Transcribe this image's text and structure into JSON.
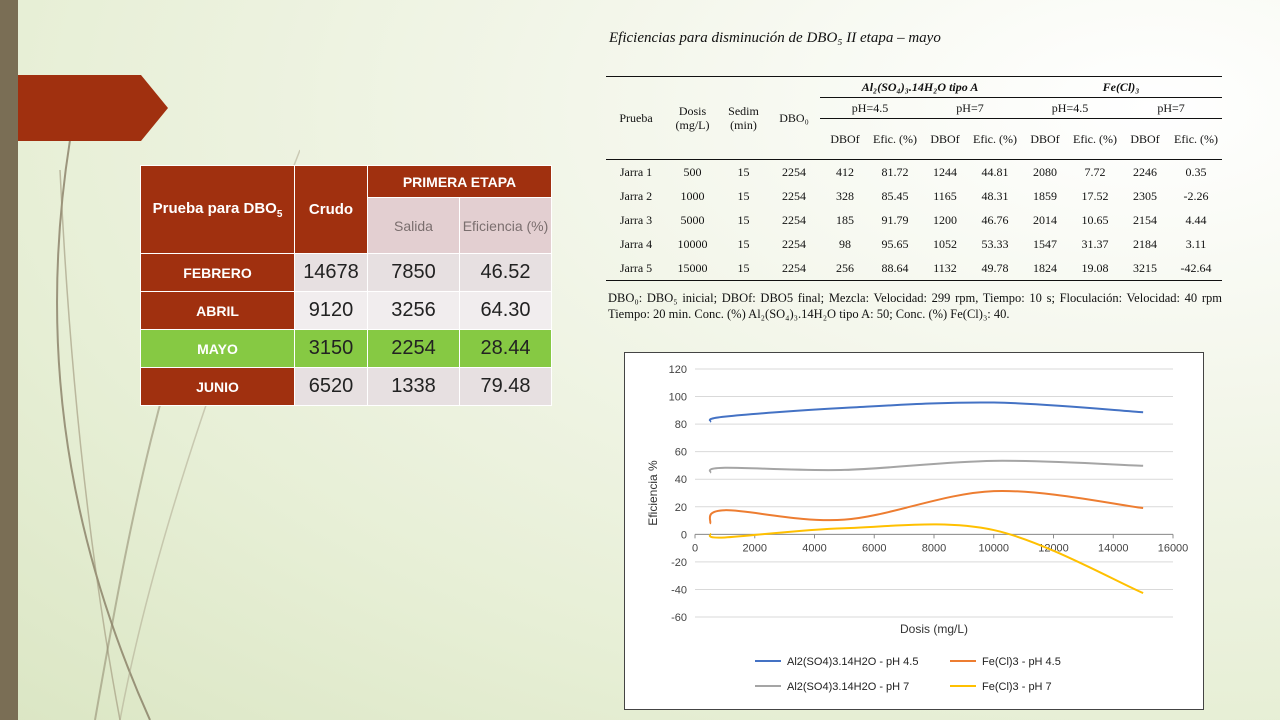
{
  "left_table": {
    "header_test": "Prueba para DBO",
    "header_test_sub": "5",
    "header_crudo": "Crudo",
    "header_stage": "PRIMERA ETAPA",
    "header_salida": "Salida",
    "header_eficiencia": "Eficiencia (%)",
    "rows": [
      {
        "month": "FEBRERO",
        "crudo": "14678",
        "salida": "7850",
        "eficiencia": "46.52"
      },
      {
        "month": "ABRIL",
        "crudo": "9120",
        "salida": "3256",
        "eficiencia": "64.30"
      },
      {
        "month": "MAYO",
        "crudo": "3150",
        "salida": "2254",
        "eficiencia": "28.44"
      },
      {
        "month": "JUNIO",
        "crudo": "6520",
        "salida": "1338",
        "eficiencia": "79.48"
      }
    ]
  },
  "right_table": {
    "title": "Eficiencias para disminución de DBO₅ II etapa – mayo",
    "col_prueba": "Prueba",
    "col_dosis": "Dosis (mg/L)",
    "col_sedim": "Sedim (min)",
    "col_dbo0": "DBO₀",
    "group_al": "Al₂(SO₄)₃.14H₂O tipo A",
    "group_fe": "Fe(Cl)₃",
    "ph_labels": [
      "pH=4.5",
      "pH=7",
      "pH=4.5",
      "pH=7"
    ],
    "sub_dbof": "DBOf",
    "sub_efic": "Efic. (%)",
    "rows": [
      [
        "Jarra 1",
        "500",
        "15",
        "2254",
        "412",
        "81.72",
        "1244",
        "44.81",
        "2080",
        "7.72",
        "2246",
        "0.35"
      ],
      [
        "Jarra 2",
        "1000",
        "15",
        "2254",
        "328",
        "85.45",
        "1165",
        "48.31",
        "1859",
        "17.52",
        "2305",
        "-2.26"
      ],
      [
        "Jarra 3",
        "5000",
        "15",
        "2254",
        "185",
        "91.79",
        "1200",
        "46.76",
        "2014",
        "10.65",
        "2154",
        "4.44"
      ],
      [
        "Jarra 4",
        "10000",
        "15",
        "2254",
        "98",
        "95.65",
        "1052",
        "53.33",
        "1547",
        "31.37",
        "2184",
        "3.11"
      ],
      [
        "Jarra 5",
        "15000",
        "15",
        "2254",
        "256",
        "88.64",
        "1132",
        "49.78",
        "1824",
        "19.08",
        "3215",
        "-42.64"
      ]
    ],
    "note": "DBO₀: DBO₅ inicial; DBOf: DBO5 final; Mezcla: Velocidad: 299 rpm, Tiempo: 10 s; Floculación: Velocidad: 40 rpm Tiempo: 20 min. Conc. (%) Al₂(SO₄)₃.14H₂O tipo A: 50; Conc. (%) Fe(Cl)₃: 40."
  },
  "chart_data": {
    "type": "line",
    "xlabel": "Dosis (mg/L)",
    "ylabel": "Eficiencia %",
    "xlim": [
      0,
      16000
    ],
    "ylim": [
      -60,
      120
    ],
    "xticks": [
      0,
      2000,
      4000,
      6000,
      8000,
      10000,
      12000,
      14000,
      16000
    ],
    "yticks": [
      -60,
      -40,
      -20,
      0,
      20,
      40,
      60,
      80,
      100,
      120
    ],
    "grid": true,
    "legend_position": "bottom",
    "x": [
      500,
      1000,
      5000,
      10000,
      15000
    ],
    "series": [
      {
        "name": "Al2(SO4)3.14H2O - pH 4.5",
        "color": "#4472c4",
        "values": [
          81.72,
          85.45,
          91.79,
          95.65,
          88.64
        ]
      },
      {
        "name": "Fe(Cl)3 - pH 4.5",
        "color": "#ed7d31",
        "values": [
          7.72,
          17.52,
          10.65,
          31.37,
          19.08
        ]
      },
      {
        "name": "Al2(SO4)3.14H2O - pH 7",
        "color": "#a5a5a5",
        "values": [
          44.81,
          48.31,
          46.76,
          53.33,
          49.78
        ]
      },
      {
        "name": "Fe(Cl)3 - pH 7",
        "color": "#ffc000",
        "values": [
          0.35,
          -2.26,
          4.44,
          3.11,
          -42.64
        ]
      }
    ]
  }
}
